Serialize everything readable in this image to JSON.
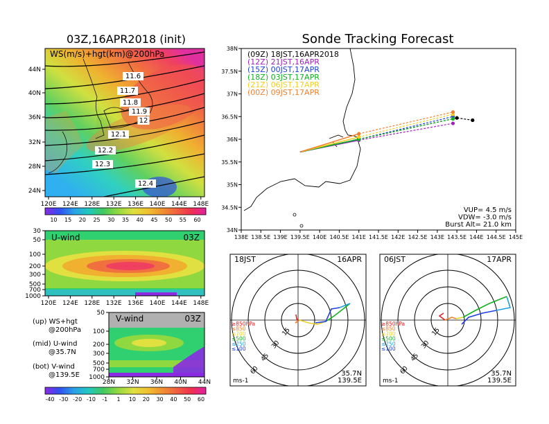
{
  "left_title": "03Z,16APR2018 (init)",
  "right_title": "Sonde Tracking Forecast",
  "map_label": "WS(m/s)+hgt(km)@200hPa",
  "map_lat_ticks": [
    "44N",
    "40N",
    "36N",
    "32N",
    "28N",
    "24N"
  ],
  "map_lon_ticks": [
    "120E",
    "124E",
    "128E",
    "132E",
    "136E",
    "140E",
    "144E",
    "148E"
  ],
  "hgt_labels": [
    "11.6",
    "11.7",
    "11.8",
    "11.9",
    "12",
    "12.1",
    "12.2",
    "12.3",
    "12.4"
  ],
  "colorbar_top": [
    "10",
    "15",
    "20",
    "25",
    "30",
    "35",
    "40",
    "45",
    "50",
    "55",
    "60"
  ],
  "uwind_title": "U-wind",
  "uwind_time": "03Z",
  "uwind_p_ticks": [
    "30",
    "50",
    "100",
    "200",
    "300",
    "500",
    "700",
    "1000"
  ],
  "uwind_lon_ticks": [
    "120E",
    "124E",
    "128E",
    "132E",
    "136E",
    "140E",
    "144E",
    "148E"
  ],
  "vwind_title": "V-wind",
  "vwind_time": "03Z",
  "vwind_p_ticks": [
    "50",
    "100",
    "200",
    "300",
    "500",
    "700",
    "1000"
  ],
  "vwind_lat_ticks": [
    "28N",
    "32N",
    "36N",
    "40N",
    "44N"
  ],
  "colorbar_bottom": [
    "-40",
    "-30",
    "-20",
    "-10",
    "-1",
    "1",
    "10",
    "20",
    "30",
    "40",
    "50",
    "60"
  ],
  "legend_notes": [
    {
      "a": "(up) WS+hgt",
      "b": "@200hPa"
    },
    {
      "a": "(mid) U-wind",
      "b": "@35.7N"
    },
    {
      "a": "(bot) V-wind",
      "b": "@139.5E"
    }
  ],
  "chart_data": {
    "type": "line",
    "title": "Sonde Tracking Forecast",
    "xlim": [
      138,
      145
    ],
    "ylim": [
      34,
      38
    ],
    "x_ticks": [
      "138E",
      "138.5E",
      "139E",
      "139.5E",
      "140E",
      "140.5E",
      "141E",
      "141.5E",
      "142E",
      "142.5E",
      "143E",
      "143.5E",
      "144E",
      "144.5E",
      "145E"
    ],
    "y_ticks": [
      "38N",
      "37.5N",
      "37N",
      "36.5N",
      "36N",
      "35.5N",
      "35N",
      "34.5N",
      "34N"
    ],
    "series": [
      {
        "name": "(09Z) 18JST,16APR2018",
        "color": "#000000",
        "x": [
          139.5,
          141.0,
          143.5,
          143.9
        ],
        "y": [
          35.72,
          36.0,
          36.47,
          36.42
        ]
      },
      {
        "name": "(12Z) 21JST,16APR",
        "color": "#a020c0",
        "x": [
          139.5,
          141.0,
          143.4
        ],
        "y": [
          35.72,
          35.98,
          36.35
        ]
      },
      {
        "name": "(15Z) 00JST,17APR",
        "color": "#2040e0",
        "x": [
          139.5,
          141.0,
          143.4
        ],
        "y": [
          35.72,
          36.0,
          36.5
        ]
      },
      {
        "name": "(18Z) 03JST,17APR",
        "color": "#10b020",
        "x": [
          139.5,
          141.0,
          143.4
        ],
        "y": [
          35.72,
          36.0,
          36.45
        ]
      },
      {
        "name": "(21Z) 06JST,17APR",
        "color": "#f0d020",
        "x": [
          139.5,
          141.0,
          143.4
        ],
        "y": [
          35.72,
          36.05,
          36.55
        ]
      },
      {
        "name": "(00Z) 09JST,17APR",
        "color": "#f08030",
        "x": [
          139.5,
          141.0,
          143.4
        ],
        "y": [
          35.72,
          36.12,
          36.6
        ]
      }
    ],
    "info": [
      "VUP= 4.5 m/s",
      "VDW= -3.0 m/s",
      "Burst Alt= 21.0 km"
    ]
  },
  "hodo1": {
    "time": "18JST",
    "date": "16APR",
    "pos1": "35.7N",
    "pos2": "139.5E",
    "unit": "ms-1"
  },
  "hodo2": {
    "time": "06JST",
    "date": "17APR",
    "pos1": "35.7N",
    "pos2": "139.5E",
    "unit": "ms-1"
  },
  "hodo_ring_labels": [
    "15",
    "30",
    "45",
    "60"
  ],
  "hodo_levels": [
    {
      "label": "≥850hPa",
      "color": "#e02020"
    },
    {
      "label": "≤850",
      "color": "#f08030"
    },
    {
      "label": "≤700",
      "color": "#f0d020"
    },
    {
      "label": "≤500",
      "color": "#10b020"
    },
    {
      "label": "≤250",
      "color": "#20a0e0"
    },
    {
      "label": "≤100",
      "color": "#2040e0"
    }
  ]
}
